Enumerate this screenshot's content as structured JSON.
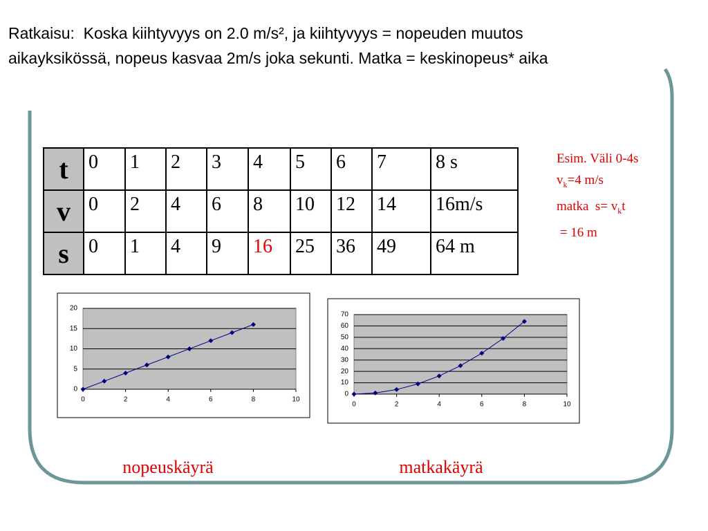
{
  "heading": "Ratkaisu:  Koska kiihtyvyys on 2.0 m/s², ja kiihtyvyys = nopeuden muutos aikayksikössä, nopeus kasvaa 2m/s joka sekunti. Matka = keskinopeus* aika",
  "table": {
    "rows": [
      [
        "t",
        "0",
        "1",
        "2",
        "3",
        "4",
        "5",
        "6",
        "7",
        "8 s"
      ],
      [
        "v",
        "0",
        "2",
        "4",
        "6",
        "8",
        "10",
        "12",
        "14",
        "16m/s"
      ],
      [
        "s",
        "0",
        "1",
        "4",
        "9",
        "16",
        "25",
        "36",
        "49",
        "64 m"
      ]
    ]
  },
  "note": {
    "lines": [
      [
        "Esim. Väli 0-4s"
      ],
      [
        "v",
        "k",
        "=4 m/s"
      ],
      [
        "matka  s= v",
        "k",
        "t"
      ],
      [
        " = 16 m"
      ]
    ]
  },
  "chart_data": [
    {
      "type": "line",
      "title": "nopeuskäyrä",
      "x": [
        0,
        1,
        2,
        3,
        4,
        5,
        6,
        7,
        8
      ],
      "values": [
        0,
        2,
        4,
        6,
        8,
        10,
        12,
        14,
        16
      ],
      "color": "#000080",
      "xlim": [
        0,
        10
      ],
      "xticks": [
        0,
        2,
        4,
        6,
        8,
        10
      ],
      "ylim": [
        0,
        20
      ],
      "yticks": [
        0,
        5,
        10,
        15,
        20
      ],
      "grid": true
    },
    {
      "type": "line",
      "title": "matkakäyrä",
      "x": [
        0,
        1,
        2,
        3,
        4,
        5,
        6,
        7,
        8
      ],
      "values": [
        0,
        1,
        4,
        9,
        16,
        25,
        36,
        49,
        64
      ],
      "color": "#000080",
      "xlim": [
        0,
        10
      ],
      "xticks": [
        0,
        2,
        4,
        6,
        8,
        10
      ],
      "ylim": [
        0,
        70
      ],
      "yticks": [
        0,
        10,
        20,
        30,
        40,
        50,
        60,
        70
      ],
      "grid": true
    }
  ]
}
